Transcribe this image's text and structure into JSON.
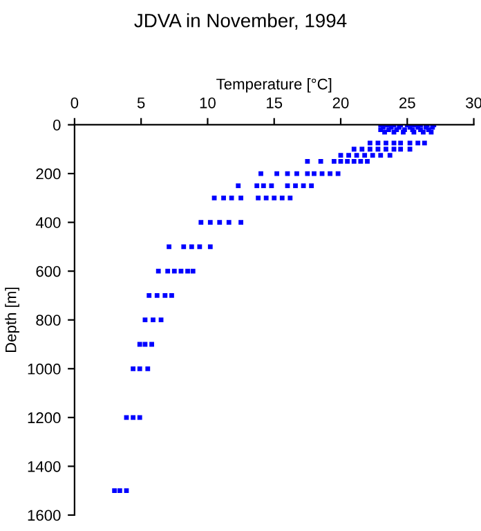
{
  "chart_data": {
    "type": "scatter",
    "title": "JDVA in November, 1994",
    "xlabel": "Temperature [°C]",
    "ylabel": "Depth [m]",
    "x": [
      23.0,
      23.5,
      24.0,
      24.5,
      25.0,
      25.5,
      26.0,
      26.5,
      27.0,
      23.2,
      23.8,
      24.4,
      25.2,
      25.8,
      26.4,
      26.9,
      23.0,
      23.6,
      24.2,
      24.8,
      25.4,
      26.0,
      26.6,
      23.3,
      24.0,
      24.7,
      25.5,
      26.2,
      26.8,
      22.2,
      22.8,
      23.4,
      24.0,
      24.5,
      25.2,
      25.8,
      26.3,
      21.0,
      21.6,
      22.2,
      22.8,
      23.4,
      24.0,
      24.5,
      25.2,
      20.0,
      20.6,
      21.2,
      21.8,
      22.4,
      23.0,
      23.7,
      17.5,
      18.5,
      19.5,
      20.0,
      20.5,
      21.0,
      21.5,
      22.0,
      14.0,
      15.2,
      16.0,
      16.7,
      17.5,
      18.0,
      18.6,
      19.2,
      19.8,
      12.3,
      13.7,
      14.2,
      14.8,
      16.0,
      16.6,
      17.2,
      17.8,
      10.5,
      11.2,
      11.8,
      12.5,
      13.8,
      14.4,
      15.0,
      15.6,
      16.2,
      9.5,
      10.2,
      10.9,
      11.6,
      12.5,
      7.1,
      8.2,
      8.8,
      9.4,
      10.2,
      6.3,
      7.0,
      7.5,
      8.0,
      8.5,
      8.9,
      5.6,
      6.2,
      6.8,
      7.3,
      5.3,
      5.9,
      6.5,
      4.9,
      5.3,
      5.8,
      4.4,
      4.9,
      5.5,
      3.9,
      4.4,
      4.9,
      3.0,
      3.4,
      3.9
    ],
    "values": [
      0,
      0,
      0,
      0,
      0,
      0,
      0,
      0,
      0,
      10,
      10,
      10,
      10,
      10,
      10,
      10,
      20,
      20,
      20,
      20,
      20,
      20,
      20,
      30,
      30,
      30,
      30,
      30,
      30,
      75,
      75,
      75,
      75,
      75,
      75,
      75,
      75,
      100,
      100,
      100,
      100,
      100,
      100,
      100,
      100,
      125,
      125,
      125,
      125,
      125,
      125,
      125,
      150,
      150,
      150,
      150,
      150,
      150,
      150,
      150,
      200,
      200,
      200,
      200,
      200,
      200,
      200,
      200,
      200,
      250,
      250,
      250,
      250,
      250,
      250,
      250,
      250,
      300,
      300,
      300,
      300,
      300,
      300,
      300,
      300,
      300,
      400,
      400,
      400,
      400,
      400,
      500,
      500,
      500,
      500,
      500,
      600,
      600,
      600,
      600,
      600,
      600,
      700,
      700,
      700,
      700,
      800,
      800,
      800,
      900,
      900,
      900,
      1000,
      1000,
      1000,
      1200,
      1200,
      1200,
      1500,
      1500,
      1500
    ],
    "color": "#0000ff",
    "marker": "square",
    "xlim": [
      0,
      30
    ],
    "xticks": [
      0,
      5,
      10,
      15,
      20,
      25,
      30
    ],
    "ylim": [
      1600,
      0
    ],
    "yticks": [
      0,
      200,
      400,
      600,
      800,
      1000,
      1200,
      1400,
      1600
    ],
    "grid": false
  }
}
